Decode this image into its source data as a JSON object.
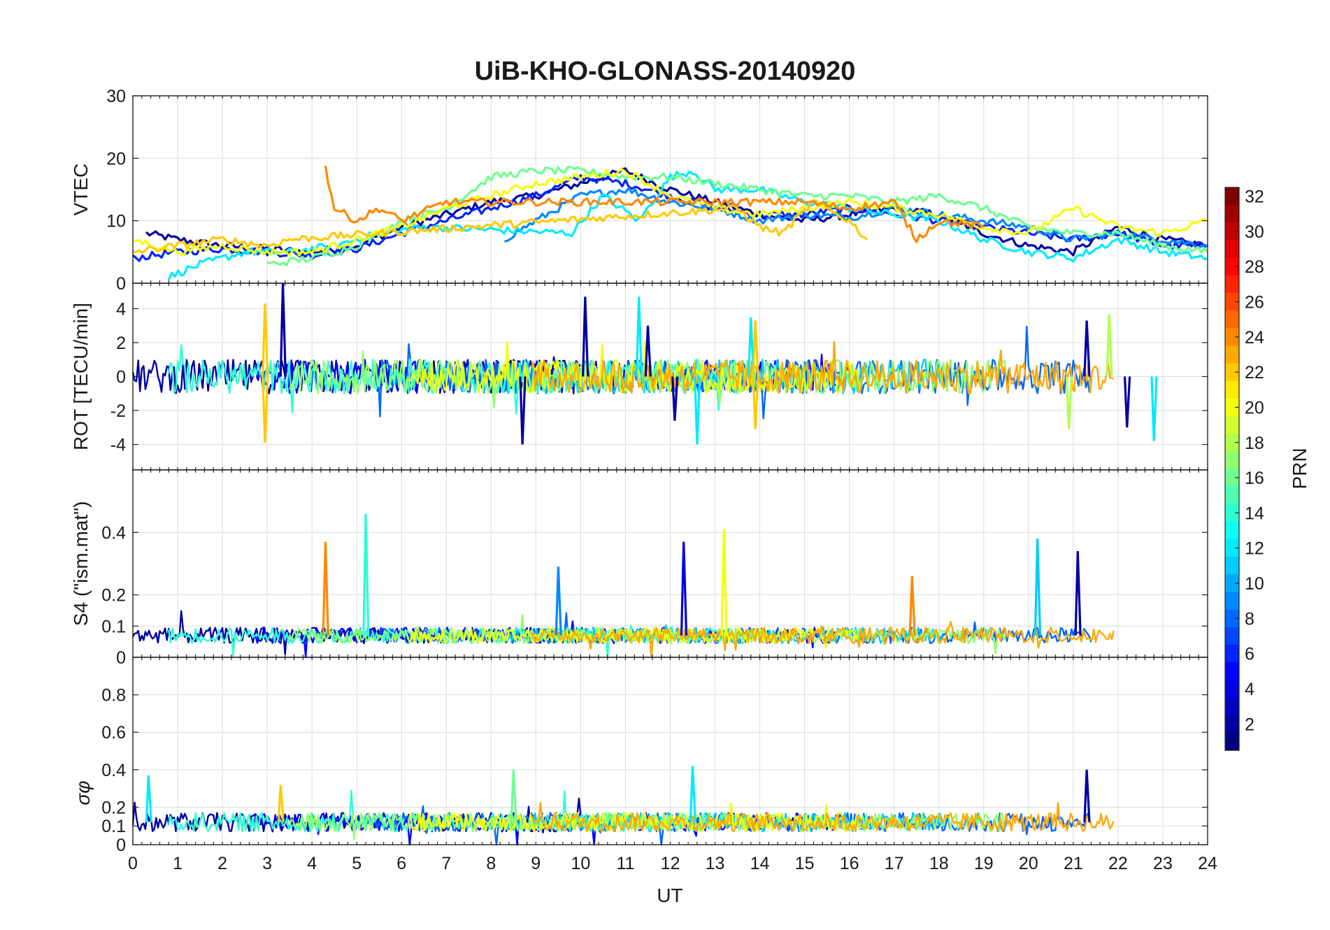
{
  "figure": {
    "title": "UiB-KHO-GLONASS-20140920",
    "xlabel": "UT"
  },
  "chart_data": {
    "type": "line",
    "x_ticks": [
      0,
      1,
      2,
      3,
      4,
      5,
      6,
      7,
      8,
      9,
      10,
      11,
      12,
      13,
      14,
      15,
      16,
      17,
      18,
      19,
      20,
      21,
      22,
      23,
      24
    ],
    "x_range": [
      0,
      24
    ],
    "grid": true,
    "colormap": "jet",
    "colorbar": {
      "label": "PRN",
      "range": [
        1,
        32
      ],
      "ticks": [
        2,
        4,
        6,
        8,
        10,
        12,
        14,
        16,
        18,
        20,
        22,
        24,
        26,
        28,
        30,
        32
      ]
    },
    "panels": [
      {
        "ylabel": "VTEC",
        "ylim": [
          0,
          30
        ],
        "yticks": [
          0,
          10,
          20,
          30
        ],
        "series": [
          {
            "prn": 2,
            "points": [
              [
                0.3,
                8
              ],
              [
                1,
                7
              ],
              [
                2,
                6
              ],
              [
                3,
                5.5
              ],
              [
                4,
                5
              ],
              [
                5,
                6
              ],
              [
                6,
                9
              ],
              [
                7,
                11
              ],
              [
                8,
                13
              ],
              [
                9,
                14
              ],
              [
                10,
                16
              ],
              [
                11,
                18
              ],
              [
                12,
                15
              ],
              [
                13,
                13
              ],
              [
                14,
                11
              ],
              [
                15,
                10
              ],
              [
                16,
                11
              ],
              [
                17,
                12
              ],
              [
                18,
                11
              ],
              [
                19,
                8
              ],
              [
                20,
                6
              ],
              [
                21,
                5
              ],
              [
                22,
                9
              ],
              [
                23,
                7
              ],
              [
                24,
                6
              ]
            ]
          },
          {
            "prn": 6,
            "points": [
              [
                0,
                4
              ],
              [
                1,
                5
              ],
              [
                2,
                5.5
              ],
              [
                3,
                5
              ],
              [
                4,
                4.5
              ],
              [
                5,
                5.5
              ],
              [
                6,
                8
              ],
              [
                7,
                10
              ],
              [
                8,
                12
              ],
              [
                9,
                14
              ],
              [
                10,
                17
              ],
              [
                11,
                16
              ],
              [
                12,
                14
              ],
              [
                13,
                12
              ],
              [
                14,
                11
              ],
              [
                15,
                11
              ],
              [
                16,
                12
              ],
              [
                17,
                11
              ],
              [
                18,
                10
              ],
              [
                19,
                9
              ],
              [
                20,
                8
              ],
              [
                21,
                7
              ],
              [
                22,
                8
              ],
              [
                23,
                6
              ],
              [
                24,
                6
              ]
            ]
          },
          {
            "prn": 9,
            "points": [
              [
                8.3,
                7
              ],
              [
                9,
                10
              ],
              [
                10,
                14
              ],
              [
                11,
                15
              ],
              [
                12,
                13
              ],
              [
                13,
                12
              ],
              [
                14,
                10
              ],
              [
                15,
                11
              ],
              [
                16,
                10.5
              ],
              [
                17,
                12
              ],
              [
                18,
                11
              ],
              [
                19,
                10
              ],
              [
                20,
                9
              ],
              [
                21,
                7
              ],
              [
                22,
                8
              ],
              [
                23,
                7
              ],
              [
                24,
                6
              ]
            ]
          },
          {
            "prn": 12,
            "points": [
              [
                0.8,
                1
              ],
              [
                1.5,
                3
              ],
              [
                2.5,
                5
              ],
              [
                3.5,
                5
              ],
              [
                4.5,
                6
              ],
              [
                5.5,
                8
              ],
              [
                6.5,
                9
              ],
              [
                9.8,
                8
              ],
              [
                10.5,
                14
              ],
              [
                11.3,
                10
              ],
              [
                12,
                17
              ],
              [
                12.5,
                18
              ],
              [
                13,
                15
              ],
              [
                14,
                15
              ],
              [
                15,
                13
              ],
              [
                16,
                12
              ],
              [
                17,
                11
              ],
              [
                18,
                10
              ],
              [
                19,
                7
              ],
              [
                20,
                5
              ],
              [
                21,
                4
              ],
              [
                22,
                7
              ],
              [
                23,
                5
              ],
              [
                24,
                4
              ]
            ]
          },
          {
            "prn": 16,
            "points": [
              [
                3,
                3
              ],
              [
                4,
                4
              ],
              [
                5,
                6
              ],
              [
                6,
                10
              ],
              [
                7,
                12
              ],
              [
                8,
                17
              ],
              [
                9,
                18
              ],
              [
                10,
                18
              ],
              [
                11,
                17
              ],
              [
                12,
                17
              ],
              [
                13,
                16
              ],
              [
                14,
                15
              ],
              [
                15,
                14
              ],
              [
                16,
                14
              ],
              [
                17,
                13
              ],
              [
                18,
                14
              ],
              [
                19,
                12
              ],
              [
                20,
                9
              ],
              [
                21,
                8
              ],
              [
                22,
                8
              ],
              [
                23,
                6
              ],
              [
                24,
                5
              ]
            ]
          },
          {
            "prn": 20,
            "points": [
              [
                0,
                7
              ],
              [
                1,
                5
              ],
              [
                2,
                6
              ],
              [
                3,
                5
              ],
              [
                4,
                5
              ],
              [
                5,
                7
              ],
              [
                6,
                9
              ],
              [
                7,
                12
              ],
              [
                8,
                14
              ],
              [
                9,
                16
              ],
              [
                10,
                17
              ],
              [
                11,
                18
              ],
              [
                12,
                14
              ],
              [
                13,
                12
              ],
              [
                14,
                11
              ],
              [
                15,
                12
              ],
              [
                16,
                13
              ],
              [
                17,
                12
              ],
              [
                18,
                11
              ],
              [
                19,
                9
              ],
              [
                20,
                8
              ],
              [
                21,
                12
              ],
              [
                22,
                9
              ],
              [
                23,
                8
              ],
              [
                24,
                10
              ]
            ]
          },
          {
            "prn": 22,
            "points": [
              [
                0,
                5
              ],
              [
                1,
                6
              ],
              [
                2,
                7
              ],
              [
                3,
                6
              ],
              [
                3.5,
                7
              ],
              [
                13.5,
                12
              ],
              [
                14,
                9
              ],
              [
                14.5,
                8
              ],
              [
                15.2,
                13
              ],
              [
                16,
                10
              ],
              [
                16.4,
                7
              ]
            ]
          },
          {
            "prn": 24,
            "points": [
              [
                4.3,
                18.5
              ],
              [
                4.5,
                12
              ],
              [
                5,
                10
              ],
              [
                5.5,
                12
              ],
              [
                6,
                10
              ],
              [
                7,
                13
              ],
              [
                15,
                13
              ],
              [
                16,
                12
              ],
              [
                17,
                13
              ],
              [
                17.5,
                7
              ],
              [
                18,
                10
              ],
              [
                19,
                9
              ]
            ]
          }
        ]
      },
      {
        "ylabel": "ROT [TECU/min]",
        "ylim": [
          -5.5,
          5.5
        ],
        "yticks": [
          -4,
          -2,
          0,
          2,
          4
        ],
        "spikes": [
          {
            "prn": 2,
            "points": [
              [
                3.35,
                5.5
              ],
              [
                8.7,
                -4
              ],
              [
                10.1,
                4.7
              ],
              [
                11.5,
                3
              ],
              [
                12.1,
                -2.6
              ],
              [
                21.3,
                3.3
              ],
              [
                22.2,
                -3
              ]
            ]
          },
          {
            "prn": 12,
            "points": [
              [
                11.3,
                4.7
              ],
              [
                12.6,
                -4
              ],
              [
                13.8,
                3.5
              ],
              [
                22.8,
                -3.8
              ]
            ]
          },
          {
            "prn": 22,
            "points": [
              [
                2.95,
                4.3
              ],
              [
                2.95,
                -3.9
              ],
              [
                13.9,
                3.3
              ],
              [
                13.9,
                -3.1
              ]
            ]
          },
          {
            "prn": 18,
            "points": [
              [
                21.8,
                3.7
              ],
              [
                20.9,
                -3.1
              ]
            ]
          }
        ]
      },
      {
        "ylabel": "S4 (\"ism.mat\")",
        "ylim": [
          0,
          0.6
        ],
        "yticks": [
          0,
          0.1,
          0.2,
          0.4
        ],
        "spikes": [
          {
            "prn": 24,
            "points": [
              [
                4.3,
                0.37
              ]
            ]
          },
          {
            "prn": 14,
            "points": [
              [
                5.2,
                0.46
              ]
            ]
          },
          {
            "prn": 4,
            "points": [
              [
                12.3,
                0.37
              ]
            ]
          },
          {
            "prn": 20,
            "points": [
              [
                13.2,
                0.41
              ]
            ]
          },
          {
            "prn": 11,
            "points": [
              [
                20.2,
                0.38
              ]
            ]
          },
          {
            "prn": 2,
            "points": [
              [
                21.1,
                0.34
              ]
            ]
          },
          {
            "prn": 9,
            "points": [
              [
                9.5,
                0.29
              ]
            ]
          },
          {
            "prn": 24,
            "points": [
              [
                17.4,
                0.26
              ]
            ]
          }
        ]
      },
      {
        "ylabel": "σφ",
        "ylim": [
          0,
          1
        ],
        "yticks": [
          0,
          0.1,
          0.2,
          0.4,
          0.6,
          0.8
        ],
        "spikes": [
          {
            "prn": 2,
            "points": [
              [
                21.3,
                0.4
              ]
            ]
          },
          {
            "prn": 12,
            "points": [
              [
                12.5,
                0.42
              ],
              [
                0.35,
                0.37
              ]
            ]
          },
          {
            "prn": 16,
            "points": [
              [
                8.5,
                0.4
              ]
            ]
          },
          {
            "prn": 22,
            "points": [
              [
                3.3,
                0.32
              ]
            ]
          }
        ]
      }
    ]
  }
}
